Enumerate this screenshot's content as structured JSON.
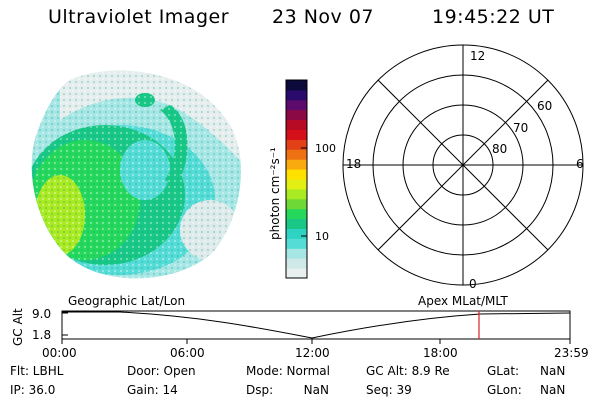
{
  "header": {
    "title": "Ultraviolet Imager",
    "date": "23 Nov 07",
    "time": "19:45:22 UT"
  },
  "colorbar": {
    "label": "photon cm⁻²s⁻¹",
    "ticks": [
      "100",
      "10"
    ],
    "colors": [
      "#e8efef",
      "#cfe8e8",
      "#a6e6e4",
      "#56dcd6",
      "#2fd3c3",
      "#19c887",
      "#25d85b",
      "#6ed936",
      "#aaea22",
      "#e3ee15",
      "#ffe100",
      "#f9aa0f",
      "#ee7214",
      "#e24017",
      "#d51019",
      "#b70a25",
      "#8b0a45",
      "#5c0a6b",
      "#2a0a6b",
      "#0b0a3a"
    ]
  },
  "polar_plot": {
    "mlt_labels": [
      "12",
      "18",
      "6",
      "0"
    ],
    "lat_labels": [
      "60",
      "70",
      "80"
    ]
  },
  "timeline": {
    "left_title": "Geographic Lat/Lon",
    "right_title": "Apex MLat/MLT",
    "y_label": "GC Alt",
    "y_ticks": [
      "9.0",
      "1.8"
    ],
    "x_ticks": [
      "00:00",
      "06:00",
      "12:00",
      "18:00",
      "23:59"
    ],
    "marker_color": "#e02020"
  },
  "footer": {
    "flt": "Flt: LBHL",
    "ip": "IP: 36.0",
    "door": "Door: Open",
    "gain": "Gain: 14",
    "mode": "Mode: Normal",
    "dsp": "Dsp:        NaN",
    "gc_alt": "GC Alt: 8.9 Re",
    "seq": "Seq: 39",
    "glat_label": "GLat:",
    "glat_val": "NaN",
    "glon_label": "GLon:",
    "glon_val": "NaN"
  }
}
